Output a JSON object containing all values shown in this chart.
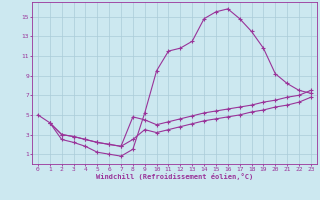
{
  "xlabel": "Windchill (Refroidissement éolien,°C)",
  "bg_color": "#cce8f0",
  "grid_color": "#aaccd8",
  "line_color": "#993399",
  "xlim": [
    -0.5,
    23.5
  ],
  "ylim": [
    0,
    16.5
  ],
  "xticks": [
    0,
    1,
    2,
    3,
    4,
    5,
    6,
    7,
    8,
    9,
    10,
    11,
    12,
    13,
    14,
    15,
    16,
    17,
    18,
    19,
    20,
    21,
    22,
    23
  ],
  "yticks": [
    1,
    3,
    5,
    7,
    9,
    11,
    13,
    15
  ],
  "line1_x": [
    0,
    1,
    2,
    3,
    4,
    5,
    6,
    7,
    8,
    9,
    10,
    11,
    12,
    13,
    14,
    15,
    16,
    17,
    18,
    19,
    20,
    21,
    22,
    23
  ],
  "line1_y": [
    5.0,
    4.2,
    2.5,
    2.2,
    1.8,
    1.2,
    1.0,
    0.8,
    1.5,
    5.2,
    9.5,
    11.5,
    11.8,
    12.5,
    14.8,
    15.5,
    15.8,
    14.8,
    13.5,
    11.8,
    9.2,
    8.2,
    7.5,
    7.2
  ],
  "line2_x": [
    1,
    2,
    3,
    4,
    5,
    6,
    7,
    8,
    9,
    10,
    11,
    12,
    13,
    14,
    15,
    16,
    17,
    18,
    19,
    20,
    21,
    22,
    23
  ],
  "line2_y": [
    4.2,
    3.0,
    2.8,
    2.5,
    2.2,
    2.0,
    1.8,
    4.8,
    4.5,
    4.0,
    4.3,
    4.6,
    4.9,
    5.2,
    5.4,
    5.6,
    5.8,
    6.0,
    6.3,
    6.5,
    6.8,
    7.0,
    7.5
  ],
  "line3_x": [
    1,
    2,
    3,
    4,
    5,
    6,
    7,
    8,
    9,
    10,
    11,
    12,
    13,
    14,
    15,
    16,
    17,
    18,
    19,
    20,
    21,
    22,
    23
  ],
  "line3_y": [
    4.2,
    3.0,
    2.8,
    2.5,
    2.2,
    2.0,
    1.8,
    2.5,
    3.5,
    3.2,
    3.5,
    3.8,
    4.1,
    4.4,
    4.6,
    4.8,
    5.0,
    5.3,
    5.5,
    5.8,
    6.0,
    6.3,
    6.8
  ]
}
